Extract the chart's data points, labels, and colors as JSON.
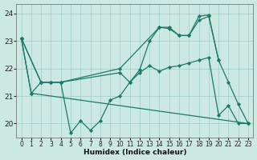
{
  "xlabel": "Humidex (Indice chaleur)",
  "bg_color": "#cce8e2",
  "grid_color": "#9ecdc5",
  "line_color": "#1a7a6a",
  "xlim": [
    -0.5,
    23.5
  ],
  "ylim": [
    19.5,
    24.35
  ],
  "xticks": [
    0,
    1,
    2,
    3,
    4,
    5,
    6,
    7,
    8,
    9,
    10,
    11,
    12,
    13,
    14,
    15,
    16,
    17,
    18,
    19,
    20,
    21,
    22,
    23
  ],
  "yticks": [
    20,
    21,
    22,
    23,
    24
  ],
  "lines": [
    {
      "x": [
        0,
        1,
        2,
        3,
        4,
        5,
        6,
        7,
        8,
        9,
        10,
        11,
        12,
        13,
        14,
        15,
        16,
        17,
        18,
        19,
        20,
        21,
        22,
        23
      ],
      "y": [
        23.1,
        21.1,
        21.5,
        21.5,
        21.5,
        19.65,
        20.1,
        19.75,
        20.1,
        20.85,
        21.0,
        21.5,
        21.85,
        22.1,
        21.9,
        22.05,
        22.1,
        22.2,
        22.3,
        22.4,
        20.3,
        20.65,
        20.0,
        20.0
      ]
    },
    {
      "x": [
        0,
        2,
        3,
        4,
        10,
        11,
        12,
        13,
        14,
        15,
        16,
        17,
        18,
        19,
        20,
        21,
        22,
        23
      ],
      "y": [
        23.1,
        21.5,
        21.5,
        21.5,
        21.85,
        21.5,
        21.95,
        23.0,
        23.5,
        23.45,
        23.2,
        23.2,
        23.75,
        23.9,
        22.3,
        21.5,
        20.7,
        20.0
      ]
    },
    {
      "x": [
        0,
        2,
        3,
        4,
        10,
        14,
        15,
        16,
        17,
        18,
        19,
        20
      ],
      "y": [
        23.1,
        21.5,
        21.5,
        21.5,
        22.0,
        23.5,
        23.5,
        23.2,
        23.2,
        23.9,
        23.95,
        22.3
      ]
    },
    {
      "x": [
        0,
        1,
        23
      ],
      "y": [
        23.1,
        21.1,
        20.0
      ]
    }
  ]
}
